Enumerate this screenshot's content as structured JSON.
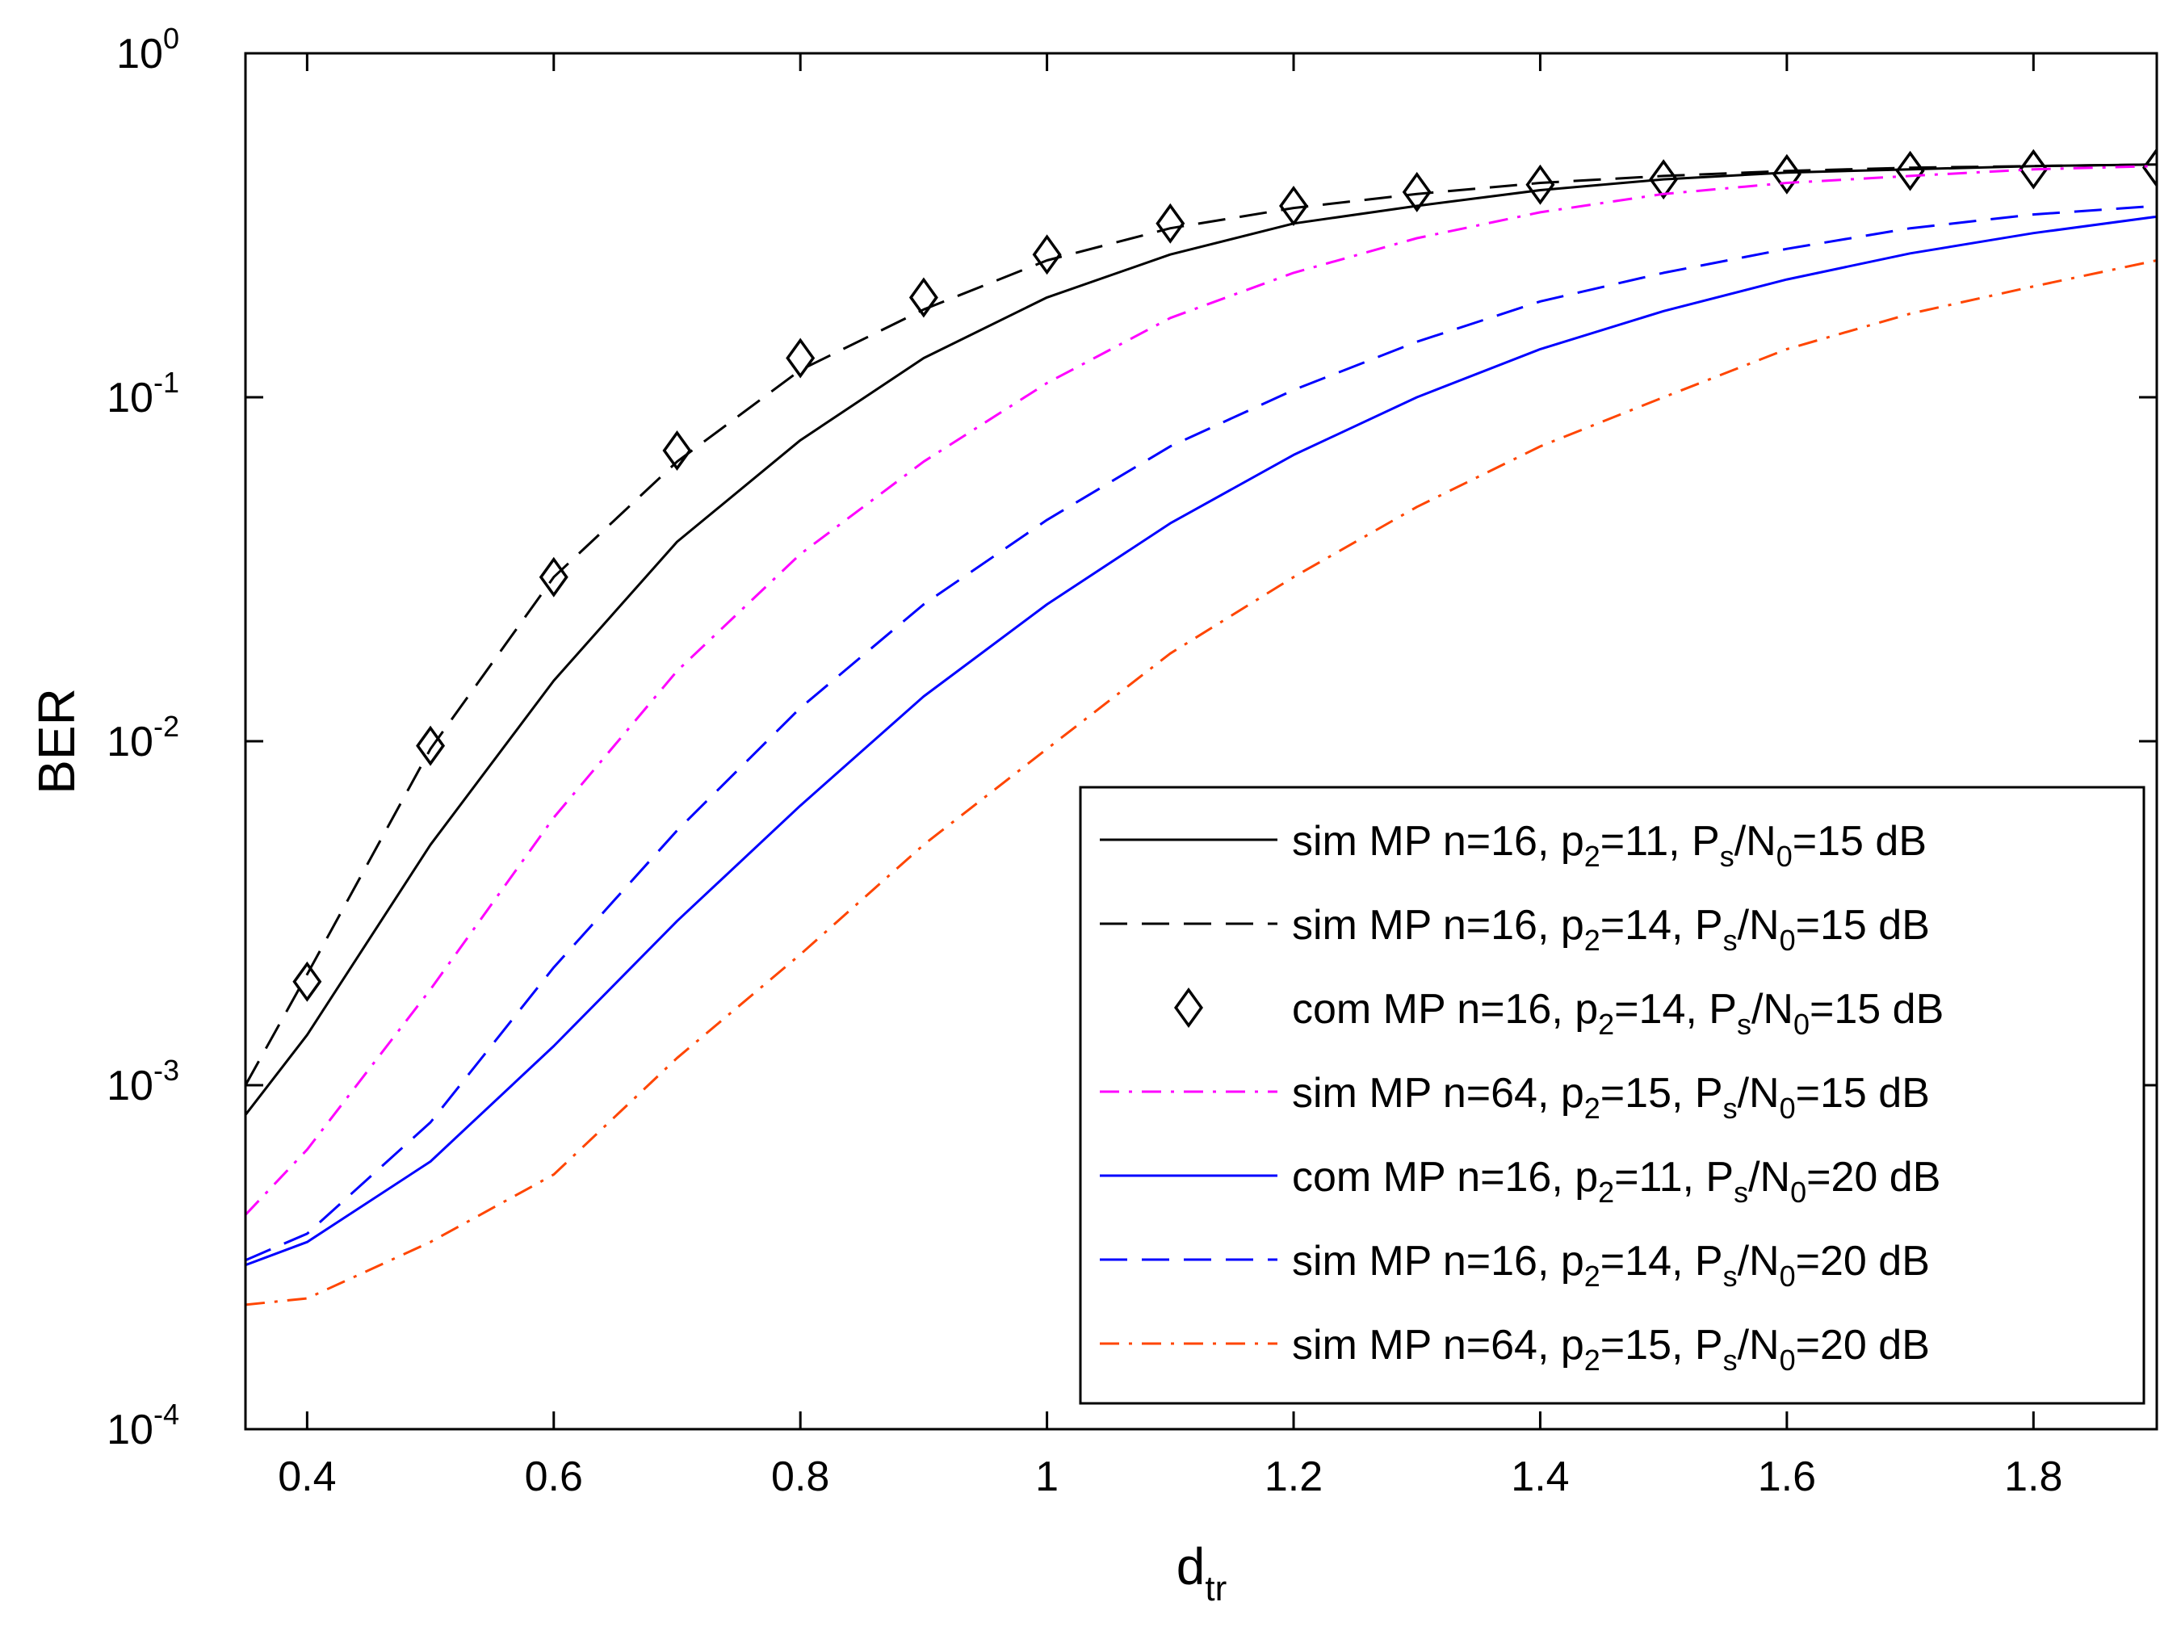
{
  "chart_data": {
    "type": "line",
    "title": "",
    "xlabel": {
      "base": "d",
      "sub": "tr"
    },
    "ylabel": "BER",
    "xlim": [
      0.35,
      1.9
    ],
    "ylim": [
      0.0001,
      1
    ],
    "yscale": "log",
    "grid": false,
    "legend_position": "bottom-right",
    "x_ticks": [
      {
        "value": 0.4,
        "label": "0.4"
      },
      {
        "value": 0.6,
        "label": "0.6"
      },
      {
        "value": 0.8,
        "label": "0.8"
      },
      {
        "value": 1.0,
        "label": "1"
      },
      {
        "value": 1.2,
        "label": "1.2"
      },
      {
        "value": 1.4,
        "label": "1.4"
      },
      {
        "value": 1.6,
        "label": "1.6"
      },
      {
        "value": 1.8,
        "label": "1.8"
      }
    ],
    "y_ticks": [
      {
        "value": 1,
        "base": "10",
        "exp": "0"
      },
      {
        "value": 0.1,
        "base": "10",
        "exp": "-1"
      },
      {
        "value": 0.01,
        "base": "10",
        "exp": "-2"
      },
      {
        "value": 0.001,
        "base": "10",
        "exp": "-3"
      },
      {
        "value": 0.0001,
        "base": "10",
        "exp": "-4"
      }
    ],
    "series": [
      {
        "name": "sim MP n=16, p2=11, Ps/N0=15 dB",
        "legend": {
          "a": "sim MP n=16, p",
          "b": "2",
          "c": "=11, P",
          "d": "s",
          "e": "/N",
          "f": "0",
          "g": "=15 dB"
        },
        "color": "#000000",
        "style": "solid",
        "marker": "none",
        "x": [
          0.35,
          0.4,
          0.5,
          0.6,
          0.7,
          0.8,
          0.9,
          1.0,
          1.1,
          1.2,
          1.3,
          1.4,
          1.5,
          1.6,
          1.7,
          1.8,
          1.9
        ],
        "y": [
          0.00082,
          0.0014,
          0.005,
          0.015,
          0.038,
          0.075,
          0.13,
          0.195,
          0.26,
          0.32,
          0.36,
          0.4,
          0.43,
          0.45,
          0.46,
          0.47,
          0.475
        ]
      },
      {
        "name": "sim MP n=16, p2=14, Ps/N0=15 dB",
        "legend": {
          "a": "sim MP n=16, p",
          "b": "2",
          "c": "=14, P",
          "d": "s",
          "e": "/N",
          "f": "0",
          "g": "=15 dB"
        },
        "color": "#000000",
        "style": "dashed",
        "marker": "none",
        "x": [
          0.35,
          0.4,
          0.5,
          0.6,
          0.7,
          0.8,
          0.9,
          1.0,
          1.1,
          1.2,
          1.3,
          1.4,
          1.5,
          1.6,
          1.7,
          1.8,
          1.9
        ],
        "y": [
          0.001,
          0.0021,
          0.0095,
          0.03,
          0.065,
          0.12,
          0.18,
          0.25,
          0.31,
          0.355,
          0.39,
          0.42,
          0.44,
          0.455,
          0.465,
          0.47,
          0.475
        ]
      },
      {
        "name": "com MP n=16, p2=14, Ps/N0=15 dB",
        "legend": {
          "a": "com MP n=16, p",
          "b": "2",
          "c": "=14, P",
          "d": "s",
          "e": "/N",
          "f": "0",
          "g": "=15 dB"
        },
        "color": "#000000",
        "style": "none",
        "marker": "diamond",
        "x": [
          0.4,
          0.5,
          0.6,
          0.7,
          0.8,
          0.9,
          1.0,
          1.1,
          1.2,
          1.3,
          1.4,
          1.5,
          1.6,
          1.7,
          1.8,
          1.9
        ],
        "y": [
          0.002,
          0.0097,
          0.03,
          0.07,
          0.13,
          0.195,
          0.26,
          0.32,
          0.36,
          0.395,
          0.415,
          0.43,
          0.445,
          0.455,
          0.46,
          0.465
        ]
      },
      {
        "name": "sim MP n=64, p2=15, Ps/N0=15 dB",
        "legend": {
          "a": "sim MP n=64, p",
          "b": "2",
          "c": "=15, P",
          "d": "s",
          "e": "/N",
          "f": "0",
          "g": "=15 dB"
        },
        "color": "#ff00ff",
        "style": "dashdot",
        "marker": "none",
        "x": [
          0.35,
          0.4,
          0.5,
          0.6,
          0.7,
          0.8,
          0.9,
          1.0,
          1.1,
          1.2,
          1.3,
          1.4,
          1.5,
          1.6,
          1.7,
          1.8,
          1.9
        ],
        "y": [
          0.00042,
          0.00065,
          0.0019,
          0.006,
          0.016,
          0.035,
          0.065,
          0.11,
          0.17,
          0.23,
          0.29,
          0.345,
          0.39,
          0.42,
          0.44,
          0.46,
          0.47
        ]
      },
      {
        "name": "com MP n=16, p2=11, Ps/N0=20 dB",
        "legend": {
          "a": "com MP n=16, p",
          "b": "2",
          "c": "=11, P",
          "d": "s",
          "e": "/N",
          "f": "0",
          "g": "=20 dB"
        },
        "color": "#0000ff",
        "style": "solid",
        "marker": "none",
        "x": [
          0.35,
          0.4,
          0.5,
          0.6,
          0.7,
          0.8,
          0.9,
          1.0,
          1.1,
          1.2,
          1.3,
          1.4,
          1.5,
          1.6,
          1.7,
          1.8,
          1.9
        ],
        "y": [
          0.0003,
          0.00035,
          0.0006,
          0.0013,
          0.003,
          0.0065,
          0.0135,
          0.025,
          0.043,
          0.068,
          0.1,
          0.138,
          0.178,
          0.22,
          0.262,
          0.3,
          0.335
        ]
      },
      {
        "name": "sim MP n=16, p2=14, Ps/N0=20 dB",
        "legend": {
          "a": "sim MP n=16, p",
          "b": "2",
          "c": "=14, P",
          "d": "s",
          "e": "/N",
          "f": "0",
          "g": "=20 dB"
        },
        "color": "#0000ff",
        "style": "dashed",
        "marker": "none",
        "x": [
          0.35,
          0.4,
          0.5,
          0.6,
          0.7,
          0.8,
          0.9,
          1.0,
          1.1,
          1.2,
          1.3,
          1.4,
          1.5,
          1.6,
          1.7,
          1.8,
          1.9
        ],
        "y": [
          0.00031,
          0.00037,
          0.00078,
          0.0022,
          0.0055,
          0.0125,
          0.025,
          0.044,
          0.072,
          0.105,
          0.145,
          0.19,
          0.23,
          0.27,
          0.31,
          0.34,
          0.36
        ]
      },
      {
        "name": "sim MP n=64, p2=15, Ps/N0=20 dB",
        "legend": {
          "a": "sim MP n=64, p",
          "b": "2",
          "c": "=15, P",
          "d": "s",
          "e": "/N",
          "f": "0",
          "g": "=20 dB"
        },
        "color": "#ff4500",
        "style": "dashdot",
        "marker": "none",
        "x": [
          0.35,
          0.4,
          0.5,
          0.6,
          0.7,
          0.8,
          0.9,
          1.0,
          1.1,
          1.2,
          1.3,
          1.4,
          1.5,
          1.6,
          1.7,
          1.8,
          1.9
        ],
        "y": [
          0.00023,
          0.00024,
          0.00035,
          0.00055,
          0.0012,
          0.0024,
          0.005,
          0.0095,
          0.018,
          0.03,
          0.048,
          0.072,
          0.1,
          0.138,
          0.175,
          0.21,
          0.25
        ]
      }
    ]
  }
}
